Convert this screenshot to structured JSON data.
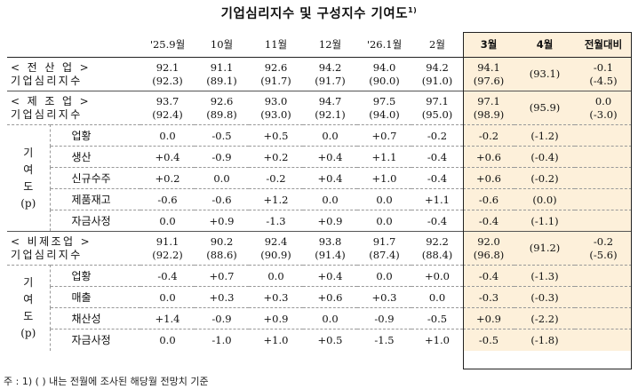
{
  "title": "기업심리지수 및 구성지수 기여도",
  "title_sup": "1)",
  "columns": [
    "'25.9월",
    "10월",
    "11월",
    "12월",
    "'26.1월",
    "2월",
    "3월",
    "4월",
    "전월대비"
  ],
  "sections": [
    {
      "header_line1": "< 전 산 업 >",
      "header_line2": "기업심리지수",
      "values": [
        [
          "92.1",
          "(92.3)"
        ],
        [
          "91.1",
          "(89.1)"
        ],
        [
          "92.6",
          "(91.7)"
        ],
        [
          "94.2",
          "(91.7)"
        ],
        [
          "94.0",
          "(90.0)"
        ],
        [
          "94.2",
          "(91.0)"
        ],
        [
          "94.1",
          "(97.6)"
        ],
        [
          "",
          "(93.1)"
        ],
        [
          "-0.1",
          "(-4.5)"
        ]
      ],
      "sublabel_chars": [],
      "rows": []
    },
    {
      "header_line1": "< 제 조 업 >",
      "header_line2": "기업심리지수",
      "values": [
        [
          "93.7",
          "(92.4)"
        ],
        [
          "92.6",
          "(89.8)"
        ],
        [
          "93.0",
          "(93.0)"
        ],
        [
          "94.7",
          "(92.1)"
        ],
        [
          "97.5",
          "(94.0)"
        ],
        [
          "97.1",
          "(95.0)"
        ],
        [
          "97.1",
          "(98.9)"
        ],
        [
          "",
          "(95.9)"
        ],
        [
          "0.0",
          "(-3.0)"
        ]
      ],
      "sublabel_chars": [
        "기",
        "여",
        "도",
        "(p)"
      ],
      "rows": [
        {
          "label": "업황",
          "values": [
            "0.0",
            "-0.5",
            "+0.5",
            "0.0",
            "+0.7",
            "-0.2",
            "-0.2",
            "(-1.2)",
            ""
          ]
        },
        {
          "label": "생산",
          "values": [
            "+0.4",
            "-0.9",
            "+0.2",
            "+0.4",
            "+1.1",
            "-0.4",
            "+0.6",
            "(-0.4)",
            ""
          ]
        },
        {
          "label": "신규수주",
          "values": [
            "+0.2",
            "0.0",
            "-0.2",
            "+0.4",
            "+1.0",
            "-0.4",
            "+0.6",
            "(-0.2)",
            ""
          ]
        },
        {
          "label": "제품재고",
          "values": [
            "-0.6",
            "-0.6",
            "+1.2",
            "0.0",
            "0.0",
            "+1.1",
            "-0.6",
            "(0.0)",
            ""
          ]
        },
        {
          "label": "자금사정",
          "values": [
            "0.0",
            "+0.9",
            "-1.3",
            "+0.9",
            "0.0",
            "-0.4",
            "-0.4",
            "(-1.1)",
            ""
          ]
        }
      ]
    },
    {
      "header_line1": "< 비제조업 >",
      "header_line2": "기업심리지수",
      "values": [
        [
          "91.1",
          "(92.2)"
        ],
        [
          "90.2",
          "(88.6)"
        ],
        [
          "92.4",
          "(90.9)"
        ],
        [
          "93.8",
          "(91.4)"
        ],
        [
          "91.7",
          "(87.4)"
        ],
        [
          "92.2",
          "(88.4)"
        ],
        [
          "92.0",
          "(96.8)"
        ],
        [
          "",
          "(91.2)"
        ],
        [
          "-0.2",
          "(-5.6)"
        ]
      ],
      "sublabel_chars": [
        "기",
        "여",
        "도",
        "(p)"
      ],
      "rows": [
        {
          "label": "업황",
          "values": [
            "-0.4",
            "+0.7",
            "0.0",
            "+0.4",
            "0.0",
            "+0.0",
            "-0.4",
            "(-1.3)",
            ""
          ]
        },
        {
          "label": "매출",
          "values": [
            "0.0",
            "+0.3",
            "+0.3",
            "+0.6",
            "+0.3",
            "0.0",
            "-0.3",
            "(-0.3)",
            ""
          ]
        },
        {
          "label": "채산성",
          "values": [
            "+1.4",
            "-0.9",
            "+0.9",
            "0.0",
            "-0.9",
            "-0.5",
            "+0.9",
            "(-2.2)",
            ""
          ]
        },
        {
          "label": "자금사정",
          "values": [
            "0.0",
            "-1.0",
            "+1.0",
            "+0.5",
            "-1.5",
            "+1.0",
            "-0.5",
            "(-1.8)",
            ""
          ]
        }
      ]
    }
  ],
  "note": "주 : 1) (   ) 내는 전월에 조사된 해당월 전망치 기준"
}
